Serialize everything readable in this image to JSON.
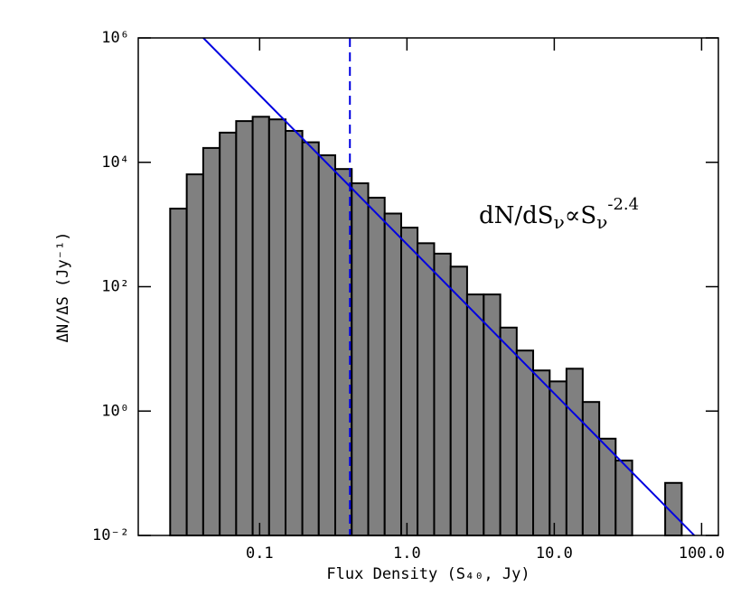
{
  "chart_data": {
    "type": "histogram",
    "xlabel": "Flux Density (S₄₀, Jy)",
    "ylabel": "ΔN/ΔS (Jy⁻¹)",
    "bins": [
      0.0247,
      0.032,
      0.0414,
      0.0536,
      0.0693,
      0.0897,
      0.116,
      0.15,
      0.195,
      0.252,
      0.326,
      0.422,
      0.546,
      0.706,
      0.914,
      1.18,
      1.53,
      1.98,
      2.56,
      3.32,
      4.3,
      5.56,
      7.19,
      9.31,
      12.1,
      15.6,
      20.2,
      26.1,
      33.8,
      43.8,
      56.6,
      73.3
    ],
    "counts": [
      1800,
      6400,
      17000,
      30000,
      46000,
      54000,
      49000,
      32000,
      21000,
      13000,
      7800,
      4600,
      2700,
      1500,
      890,
      500,
      340,
      210,
      75,
      75,
      22,
      9.4,
      4.5,
      3.0,
      4.8,
      1.4,
      0.36,
      0.16,
      0,
      0,
      0.07
    ],
    "color": "#808080",
    "xscale": "log",
    "yscale": "log",
    "xlim": [
      0.015,
      130
    ],
    "ylim": [
      0.01,
      1000000
    ],
    "xticks": [
      0.1,
      {
        "value": 1,
        "label": "1.0"
      },
      {
        "value": 10,
        "label": "10.0"
      },
      {
        "value": 100,
        "label": "100.0"
      }
    ],
    "yticks": [
      {
        "value": 0.01,
        "label": "10⁻²"
      },
      {
        "value": 1,
        "label": "10⁰"
      },
      {
        "value": 100,
        "label": "10²"
      },
      {
        "value": 10000,
        "label": "10⁴"
      },
      {
        "value": 1000000,
        "label": "10⁶"
      }
    ],
    "vline": 0.41,
    "vline_color": "#0000e0",
    "power_law": {
      "norm": 481,
      "index": -2.4,
      "color": "#0000e0"
    },
    "annotation": {
      "text": "dN/dS",
      "sub": "ν",
      "mid": "∝S"
    }
  }
}
